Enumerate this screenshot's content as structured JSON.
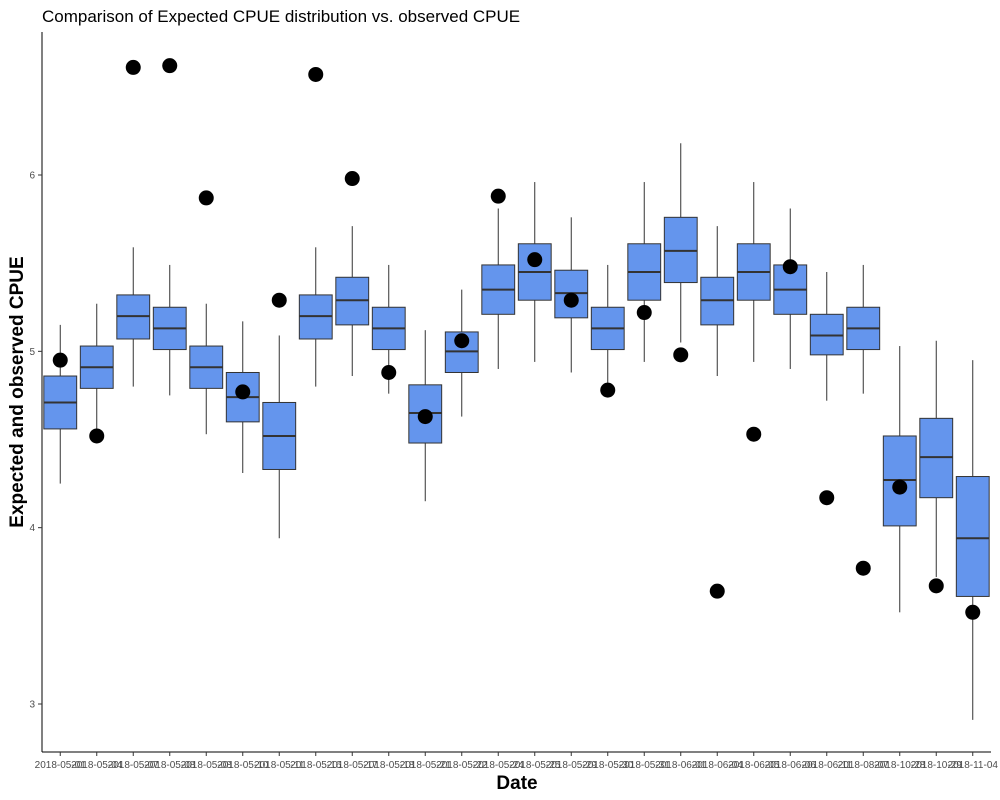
{
  "chart_data": {
    "type": "box",
    "title": "Comparison of Expected CPUE distribution vs. observed CPUE",
    "xlabel": "Date",
    "ylabel": "Expected and observed CPUE",
    "ylim": [
      2.75,
      6.8
    ],
    "yticks": [
      3,
      4,
      5,
      6
    ],
    "grid": false,
    "box_color": "#6495ED",
    "point_color": "#000000",
    "categories": [
      "2018-05-01",
      "2018-05-04",
      "2018-05-07",
      "2018-05-08",
      "2018-05-08",
      "2018-05-10",
      "2018-05-11",
      "2018-05-16",
      "2018-05-17",
      "2018-05-18",
      "2018-05-21",
      "2018-05-22",
      "2018-05-24",
      "2018-05-25",
      "2018-05-29",
      "2018-05-30",
      "2018-05-31",
      "2018-06-01",
      "2018-06-04",
      "2018-06-05",
      "2018-06-06",
      "2018-06-11",
      "2018-08-07",
      "2018-10-28",
      "2018-10-29",
      "2018-11-04"
    ],
    "boxes": [
      {
        "min": 4.25,
        "q1": 4.56,
        "median": 4.71,
        "q3": 4.86,
        "max": 5.15
      },
      {
        "min": 4.55,
        "q1": 4.79,
        "median": 4.91,
        "q3": 5.03,
        "max": 5.27
      },
      {
        "min": 4.8,
        "q1": 5.07,
        "median": 5.2,
        "q3": 5.32,
        "max": 5.59
      },
      {
        "min": 4.75,
        "q1": 5.01,
        "median": 5.13,
        "q3": 5.25,
        "max": 5.49
      },
      {
        "min": 4.53,
        "q1": 4.79,
        "median": 4.91,
        "q3": 5.03,
        "max": 5.27
      },
      {
        "min": 4.31,
        "q1": 4.6,
        "median": 4.74,
        "q3": 4.88,
        "max": 5.17
      },
      {
        "min": 3.94,
        "q1": 4.33,
        "median": 4.52,
        "q3": 4.71,
        "max": 5.09
      },
      {
        "min": 4.8,
        "q1": 5.07,
        "median": 5.2,
        "q3": 5.32,
        "max": 5.59
      },
      {
        "min": 4.86,
        "q1": 5.15,
        "median": 5.29,
        "q3": 5.42,
        "max": 5.71
      },
      {
        "min": 4.76,
        "q1": 5.01,
        "median": 5.13,
        "q3": 5.25,
        "max": 5.49
      },
      {
        "min": 4.15,
        "q1": 4.48,
        "median": 4.65,
        "q3": 4.81,
        "max": 5.12
      },
      {
        "min": 4.63,
        "q1": 4.88,
        "median": 5.0,
        "q3": 5.11,
        "max": 5.35
      },
      {
        "min": 4.9,
        "q1": 5.21,
        "median": 5.35,
        "q3": 5.49,
        "max": 5.81
      },
      {
        "min": 4.94,
        "q1": 5.29,
        "median": 5.45,
        "q3": 5.61,
        "max": 5.96
      },
      {
        "min": 4.88,
        "q1": 5.19,
        "median": 5.33,
        "q3": 5.46,
        "max": 5.76
      },
      {
        "min": 4.76,
        "q1": 5.01,
        "median": 5.13,
        "q3": 5.25,
        "max": 5.49
      },
      {
        "min": 4.94,
        "q1": 5.29,
        "median": 5.45,
        "q3": 5.61,
        "max": 5.96
      },
      {
        "min": 5.05,
        "q1": 5.39,
        "median": 5.57,
        "q3": 5.76,
        "max": 6.18
      },
      {
        "min": 4.86,
        "q1": 5.15,
        "median": 5.29,
        "q3": 5.42,
        "max": 5.71
      },
      {
        "min": 4.94,
        "q1": 5.29,
        "median": 5.45,
        "q3": 5.61,
        "max": 5.96
      },
      {
        "min": 4.9,
        "q1": 5.21,
        "median": 5.35,
        "q3": 5.49,
        "max": 5.81
      },
      {
        "min": 4.72,
        "q1": 4.98,
        "median": 5.09,
        "q3": 5.21,
        "max": 5.45
      },
      {
        "min": 4.76,
        "q1": 5.01,
        "median": 5.13,
        "q3": 5.25,
        "max": 5.49
      },
      {
        "min": 3.52,
        "q1": 4.01,
        "median": 4.27,
        "q3": 4.52,
        "max": 5.03
      },
      {
        "min": 3.72,
        "q1": 4.17,
        "median": 4.4,
        "q3": 4.62,
        "max": 5.06
      },
      {
        "min": 2.91,
        "q1": 3.61,
        "median": 3.94,
        "q3": 4.29,
        "max": 4.95
      }
    ],
    "observed": [
      4.95,
      4.52,
      6.61,
      6.62,
      5.87,
      4.77,
      5.29,
      6.57,
      5.98,
      4.88,
      4.63,
      5.06,
      5.88,
      5.52,
      5.29,
      4.78,
      5.22,
      4.98,
      3.64,
      4.53,
      5.48,
      4.17,
      3.77,
      4.23,
      3.67,
      3.52
    ]
  }
}
